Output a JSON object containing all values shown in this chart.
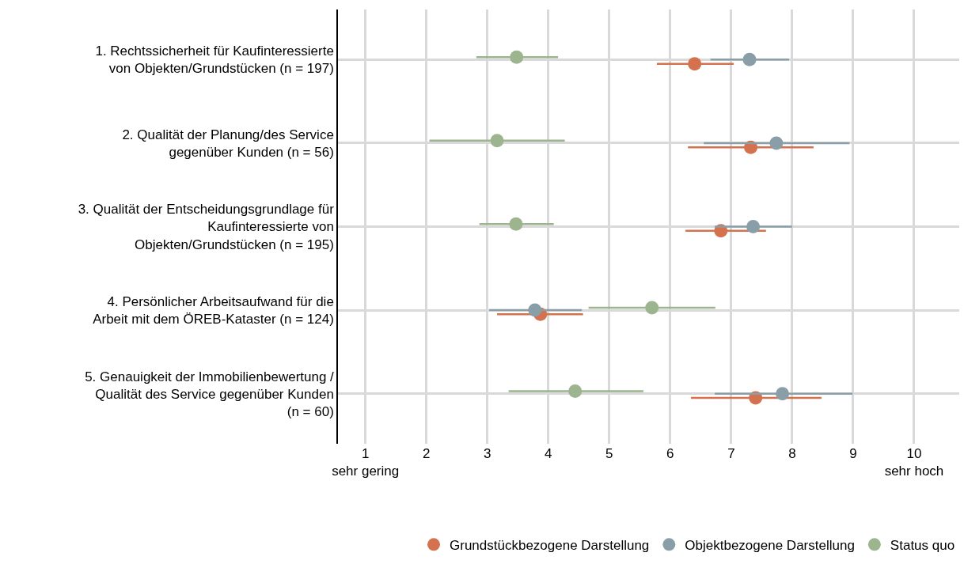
{
  "chart_data": {
    "type": "scatter",
    "orientation": "horizontal",
    "categories": [
      "1. Rechtssicherheit für Kaufinteressierte\nvon Objekten/Grundstücken (n = 197)",
      "2. Qualität der Planung/des Service\ngegenüber Kunden (n = 56)",
      "3. Qualität der Entscheidungsgrundlage für\nKaufinteressierte von\nObjekten/Grundstücken (n = 195)",
      "4. Persönlicher Arbeitsaufwand für die\nArbeit mit dem ÖREB-Kataster (n = 124)",
      "5. Genauigkeit der Immobilienbewertung /\nQualität des Service gegenüber Kunden\n(n = 60)"
    ],
    "series": [
      {
        "name": "Grundstückbezogene Darstellung",
        "color": "#d4714e",
        "values": [
          6.4,
          7.32,
          6.83,
          3.87,
          7.4
        ],
        "errors": [
          [
            5.78,
            7.04
          ],
          [
            6.29,
            8.35
          ],
          [
            6.25,
            7.57
          ],
          [
            3.16,
            4.57
          ],
          [
            6.34,
            8.48
          ]
        ]
      },
      {
        "name": "Objektbezogene Darstellung",
        "color": "#8a9ea8",
        "values": [
          7.3,
          7.74,
          7.36,
          3.78,
          7.84
        ],
        "errors": [
          [
            6.66,
            7.95
          ],
          [
            6.55,
            8.94
          ],
          [
            6.73,
            8.0
          ],
          [
            3.03,
            4.55
          ],
          [
            6.73,
            8.99
          ]
        ]
      },
      {
        "name": "Status quo",
        "color": "#9db58f",
        "values": [
          3.48,
          3.16,
          3.47,
          5.7,
          4.44
        ],
        "errors": [
          [
            2.82,
            4.16
          ],
          [
            2.05,
            4.27
          ],
          [
            2.87,
            4.09
          ],
          [
            4.66,
            6.74
          ],
          [
            3.35,
            5.56
          ]
        ]
      }
    ],
    "xlim": [
      0.55,
      10.74
    ],
    "xticks": [
      {
        "value": 1,
        "label": "1\nsehr gering"
      },
      2,
      3,
      4,
      5,
      6,
      7,
      8,
      9,
      {
        "value": 10,
        "label": "10\nsehr hoch"
      }
    ],
    "grid": true,
    "legend": "bottom right",
    "marker": "circle"
  }
}
